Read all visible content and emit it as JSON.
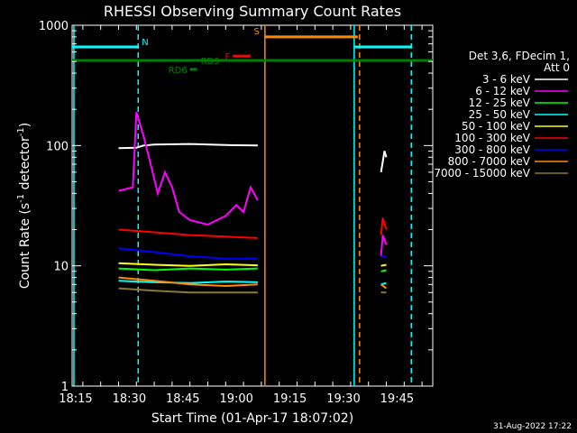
{
  "chart_data": {
    "type": "line",
    "title": "RHESSI Observing Summary Count Rates",
    "xlabel": "Start Time (01-Apr-17 18:07:02)",
    "ylabel_main": "Count Rate (s",
    "ylabel_sup1": "-1",
    "ylabel_mid": " detector",
    "ylabel_sup2": "-1",
    "ylabel_end": ")",
    "yscale": "log",
    "ylim": [
      1,
      1000
    ],
    "xlim_min": [
      7.0,
      108.0
    ],
    "x_tick_minutes": [
      8,
      23,
      38,
      53,
      68,
      83,
      98
    ],
    "x_tick_labels": [
      "18:15",
      "18:30",
      "18:45",
      "19:00",
      "19:15",
      "19:30",
      "19:45"
    ],
    "y_ticks": [
      1,
      10,
      100,
      1000
    ],
    "y_tick_labels": [
      "1",
      "10",
      "100",
      "1000"
    ],
    "legend_header": [
      "Det 3,6, FDecim 1,",
      "Att 0"
    ],
    "series": [
      {
        "name": "3 - 6 keV",
        "color": "#ffffff",
        "segments": [
          [
            [
              20,
              95
            ],
            [
              25,
              96
            ],
            [
              27,
              100
            ],
            [
              30,
              102
            ],
            [
              40,
              103
            ],
            [
              50,
              101
            ],
            [
              59,
              100
            ]
          ],
          [
            [
              93.5,
              60
            ],
            [
              94.5,
              90
            ],
            [
              95,
              80
            ]
          ]
        ]
      },
      {
        "name": "6 - 12 keV",
        "color": "#ff00ff",
        "segments": [
          [
            [
              20,
              42
            ],
            [
              24,
              45
            ],
            [
              25,
              190
            ],
            [
              27,
              120
            ],
            [
              29,
              70
            ],
            [
              31,
              40
            ],
            [
              33,
              60
            ],
            [
              35,
              45
            ],
            [
              37,
              28
            ],
            [
              40,
              24
            ],
            [
              45,
              22
            ],
            [
              50,
              26
            ],
            [
              53,
              32
            ],
            [
              55,
              28
            ],
            [
              57,
              45
            ],
            [
              59,
              35
            ]
          ],
          [
            [
              93.5,
              12
            ],
            [
              94,
              18
            ],
            [
              95,
              15
            ]
          ]
        ]
      },
      {
        "name": "12 - 25 keV",
        "color": "#00ff00",
        "segments": [
          [
            [
              20,
              9.5
            ],
            [
              30,
              9.2
            ],
            [
              40,
              9.5
            ],
            [
              50,
              9.3
            ],
            [
              59,
              9.5
            ]
          ],
          [
            [
              93.5,
              9
            ],
            [
              95,
              9.2
            ]
          ]
        ]
      },
      {
        "name": "25 - 50 keV",
        "color": "#00ffff",
        "segments": [
          [
            [
              20,
              7.5
            ],
            [
              30,
              7.3
            ],
            [
              40,
              7.2
            ],
            [
              50,
              7.4
            ],
            [
              59,
              7.3
            ]
          ],
          [
            [
              93.5,
              7
            ],
            [
              95,
              7.2
            ]
          ]
        ]
      },
      {
        "name": "50 - 100 keV",
        "color": "#ffff00",
        "segments": [
          [
            [
              20,
              10.5
            ],
            [
              30,
              10.2
            ],
            [
              40,
              10.0
            ],
            [
              50,
              10.3
            ],
            [
              59,
              10.1
            ]
          ],
          [
            [
              93.5,
              10
            ],
            [
              95,
              10.2
            ]
          ]
        ]
      },
      {
        "name": "100 - 300 keV",
        "color": "#ff0000",
        "segments": [
          [
            [
              20,
              20
            ],
            [
              30,
              19
            ],
            [
              40,
              18
            ],
            [
              50,
              17.5
            ],
            [
              59,
              17
            ]
          ],
          [
            [
              93.5,
              18
            ],
            [
              94,
              25
            ],
            [
              95,
              20
            ]
          ]
        ]
      },
      {
        "name": "300 - 800 keV",
        "color": "#0000ff",
        "segments": [
          [
            [
              20,
              14
            ],
            [
              30,
              13
            ],
            [
              40,
              12
            ],
            [
              50,
              11.5
            ],
            [
              59,
              11.5
            ]
          ],
          [
            [
              93.5,
              12
            ],
            [
              95,
              12
            ]
          ]
        ]
      },
      {
        "name": "800 - 7000 keV",
        "color": "#ff8c00",
        "segments": [
          [
            [
              20,
              8
            ],
            [
              30,
              7.5
            ],
            [
              40,
              7
            ],
            [
              50,
              6.8
            ],
            [
              59,
              7
            ]
          ],
          [
            [
              93.5,
              7
            ],
            [
              95,
              6.5
            ]
          ]
        ]
      },
      {
        "name": "7000 - 15000 keV",
        "color": "#8b7a2e",
        "segments": [
          [
            [
              20,
              6.5
            ],
            [
              30,
              6.2
            ],
            [
              40,
              6
            ],
            [
              50,
              6
            ],
            [
              59,
              6
            ]
          ],
          [
            [
              93.5,
              6
            ],
            [
              95,
              6
            ]
          ]
        ]
      }
    ],
    "flag_lines": [
      {
        "label": "N",
        "color": "#00ffff",
        "y": 660,
        "segments": [
          [
            7,
            25.5
          ],
          [
            86,
            102
          ]
        ]
      },
      {
        "label": "S",
        "color": "#ff8c00",
        "y": 800,
        "segments": [
          [
            61,
            87
          ]
        ]
      },
      {
        "label": "F",
        "color": "#ff0000",
        "y": 555,
        "segments": [
          [
            52,
            57
          ]
        ]
      },
      {
        "label": "RD6",
        "color": "#008000",
        "y": 430,
        "segments": [
          [
            40,
            42
          ]
        ]
      },
      {
        "label": "RD9",
        "color": "#008000",
        "y": 510,
        "segments": [
          [
            7,
            108
          ]
        ]
      }
    ],
    "vertical_markers": [
      {
        "x_min": 7.5,
        "color": "#00ffff",
        "style": "solid"
      },
      {
        "x_min": 25.5,
        "color": "#00ffff",
        "style": "dashed"
      },
      {
        "x_min": 61,
        "color": "#ff8c00",
        "style": "solid"
      },
      {
        "x_min": 86,
        "color": "#00ffff",
        "style": "solid"
      },
      {
        "x_min": 87.5,
        "color": "#ff8c00",
        "style": "dashed"
      },
      {
        "x_min": 102,
        "color": "#00ffff",
        "style": "dashed"
      }
    ],
    "legend_position": "right",
    "footer_date": "31-Aug-2022 17:22"
  }
}
